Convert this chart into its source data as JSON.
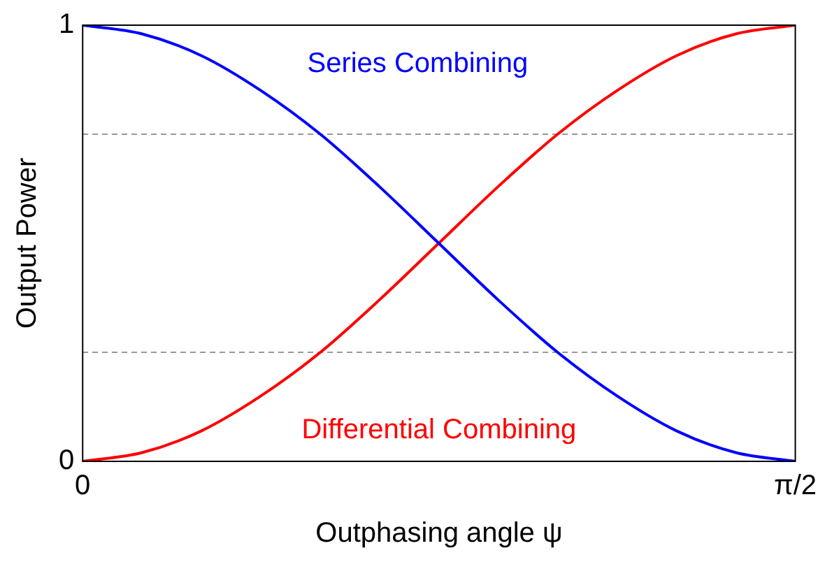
{
  "chart_data": {
    "type": "line",
    "xlabel": "Outphasing angle ψ",
    "ylabel": "Output Power",
    "x": [
      0,
      0.131,
      0.262,
      0.393,
      0.524,
      0.654,
      0.785,
      0.916,
      1.047,
      1.178,
      1.309,
      1.44,
      1.571
    ],
    "series": [
      {
        "name": "Series Combining",
        "color": "#0000ff",
        "values": [
          1,
          0.98,
          0.93,
          0.85,
          0.75,
          0.63,
          0.5,
          0.37,
          0.25,
          0.15,
          0.07,
          0.02,
          0
        ]
      },
      {
        "name": "Differential Combining",
        "color": "#ff0000",
        "values": [
          0,
          0.02,
          0.07,
          0.15,
          0.25,
          0.37,
          0.5,
          0.63,
          0.75,
          0.85,
          0.93,
          0.98,
          1
        ]
      }
    ],
    "xlim": [
      0,
      1.571
    ],
    "xticks": [
      0,
      {
        "value": 1.571,
        "label": "π/2"
      }
    ],
    "ylim": [
      0,
      1
    ],
    "yticks": [
      0,
      {
        "value": 0.25,
        "label": null
      },
      {
        "value": 0.75,
        "label": null
      },
      1
    ],
    "grid": "y",
    "marker": "none",
    "line_style": "solid",
    "legend": false
  }
}
